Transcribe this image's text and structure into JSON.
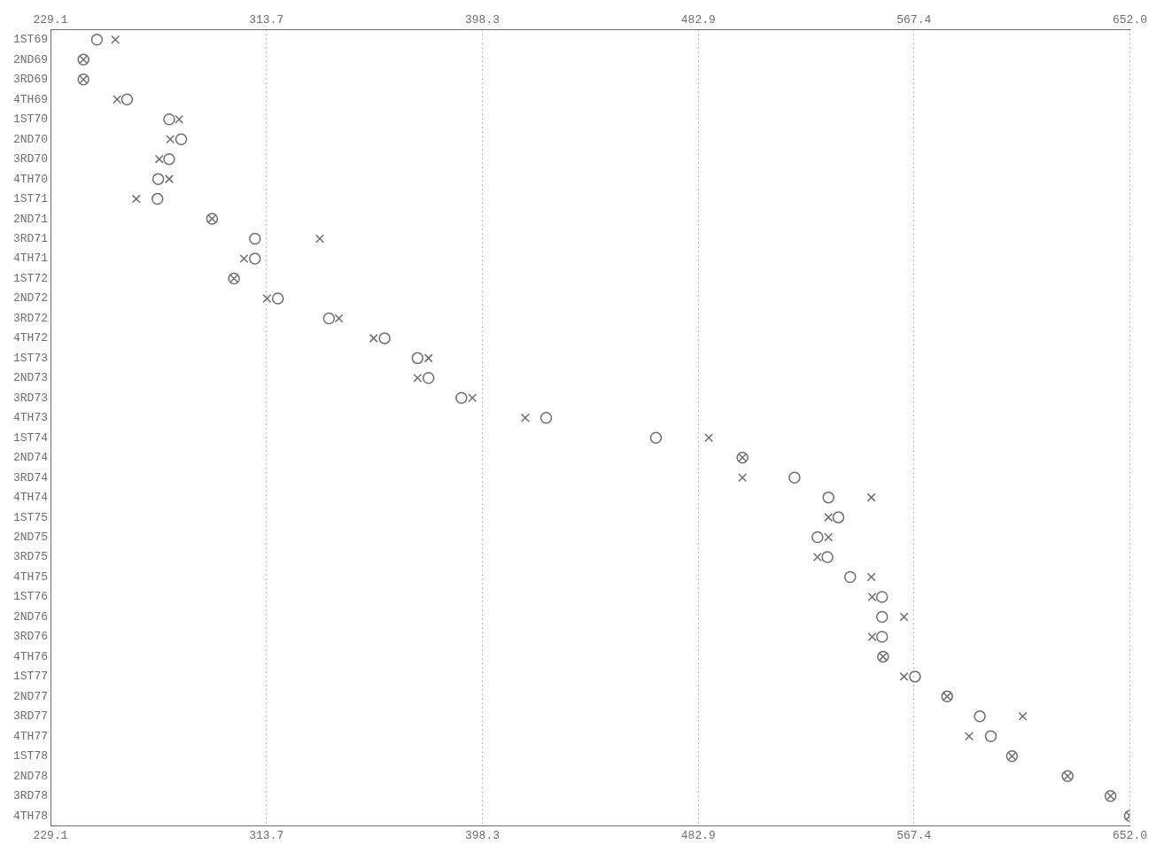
{
  "chart_data": {
    "type": "scatter",
    "orientation": "horizontal",
    "categories": [
      "1ST69",
      "2ND69",
      "3RD69",
      "4TH69",
      "1ST70",
      "2ND70",
      "3RD70",
      "4TH70",
      "1ST71",
      "2ND71",
      "3RD71",
      "4TH71",
      "1ST72",
      "2ND72",
      "3RD72",
      "4TH72",
      "1ST73",
      "2ND73",
      "3RD73",
      "4TH73",
      "1ST74",
      "2ND74",
      "3RD74",
      "4TH74",
      "1ST75",
      "2ND75",
      "3RD75",
      "4TH75",
      "1ST76",
      "2ND76",
      "3RD76",
      "4TH76",
      "1ST77",
      "2ND77",
      "3RD77",
      "4TH77",
      "1ST78",
      "2ND78",
      "3RD78",
      "4TH78"
    ],
    "series": [
      {
        "color": "#6e6e6e",
        "marker": "cross",
        "values": [
          254.5,
          242.0,
          242.0,
          255.2,
          279.5,
          276.0,
          271.7,
          275.6,
          262.7,
          292.4,
          334.6,
          304.9,
          301.0,
          313.9,
          342.1,
          355.7,
          377.2,
          372.9,
          394.4,
          415.1,
          487.0,
          500.2,
          500.2,
          550.7,
          533.9,
          533.9,
          529.6,
          550.7,
          551.0,
          563.5,
          551.0,
          555.3,
          563.5,
          580.4,
          610.0,
          589.0,
          605.8,
          627.6,
          644.4,
          652.0
        ]
      },
      {
        "color": "#6e6e6e",
        "marker": "circle",
        "values": [
          247.3,
          242.0,
          242.0,
          259.1,
          275.6,
          280.3,
          275.6,
          271.3,
          271.0,
          292.4,
          309.2,
          309.2,
          301.0,
          318.2,
          338.2,
          360.0,
          372.9,
          377.2,
          390.1,
          423.3,
          466.3,
          500.2,
          520.6,
          533.9,
          537.8,
          529.6,
          533.5,
          542.4,
          554.9,
          554.9,
          554.9,
          555.3,
          567.8,
          580.4,
          593.2,
          597.5,
          605.8,
          627.6,
          644.4,
          652.0
        ]
      }
    ],
    "xlim": [
      229.1,
      652.0
    ],
    "xticks": [
      229.1,
      313.7,
      398.3,
      482.9,
      567.4,
      {
        "value": 652.0,
        "label": "652.0"
      }
    ],
    "x2lim": [
      229.1,
      652.0
    ],
    "x2ticks": [
      229.1,
      313.7,
      398.3,
      482.9,
      567.4,
      {
        "value": 652.0,
        "label": "652.0"
      }
    ],
    "grid": "x",
    "legend": false
  }
}
